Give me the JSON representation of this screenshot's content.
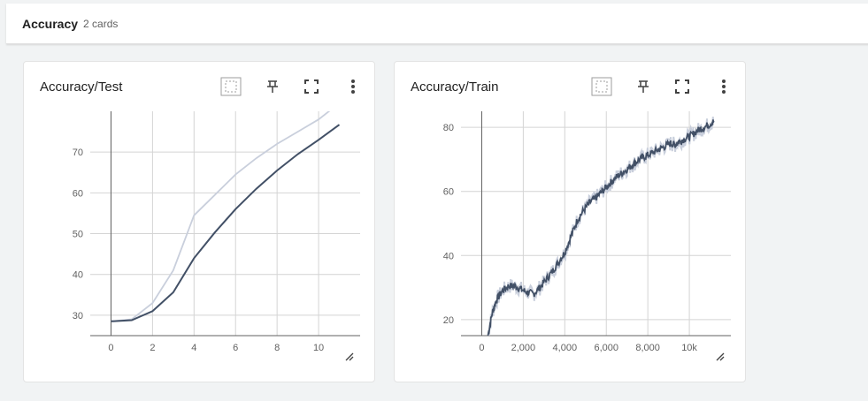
{
  "group": {
    "title": "Accuracy",
    "count": "2 cards"
  },
  "cards": [
    {
      "title": "Accuracy/Test",
      "icons": [
        "fit-domain-icon",
        "pin-icon",
        "fullscreen-icon",
        "more-vert-icon"
      ]
    },
    {
      "title": "Accuracy/Train",
      "icons": [
        "fit-domain-icon",
        "pin-icon",
        "fullscreen-icon",
        "more-vert-icon"
      ]
    }
  ],
  "chart_data": [
    {
      "type": "line",
      "xlim": [
        -1,
        12
      ],
      "ylim": [
        25,
        80
      ],
      "x_ticks": [
        0,
        2,
        4,
        6,
        8,
        10
      ],
      "x_tick_labels": [
        "0",
        "2",
        "4",
        "6",
        "8",
        "10"
      ],
      "y_ticks": [
        30,
        40,
        50,
        60,
        70
      ],
      "y_tick_labels": [
        "30",
        "40",
        "50",
        "60",
        "70"
      ],
      "grid": true,
      "colors": {
        "smoothed": "#425066",
        "raw": "#c9cfdc"
      },
      "series": [
        {
          "role": "raw",
          "x": [
            0,
            1,
            2,
            3,
            4,
            5,
            6,
            7,
            8,
            9,
            10,
            11
          ],
          "y": [
            28.5,
            29.0,
            33.0,
            41.0,
            54.5,
            59.5,
            64.5,
            68.5,
            72.0,
            75.0,
            78.0,
            82.0
          ]
        },
        {
          "role": "smoothed",
          "x": [
            0,
            1,
            2,
            3,
            4,
            5,
            6,
            7,
            8,
            9,
            10,
            11
          ],
          "y": [
            28.5,
            28.8,
            31.0,
            35.6,
            44.0,
            50.3,
            56.0,
            61.0,
            65.5,
            69.5,
            73.0,
            76.7
          ]
        }
      ]
    },
    {
      "type": "line",
      "xlim": [
        -1000,
        12000
      ],
      "ylim": [
        15,
        85
      ],
      "x_ticks": [
        0,
        2000,
        4000,
        6000,
        8000,
        10000
      ],
      "x_tick_labels": [
        "0",
        "2,000",
        "4,000",
        "6,000",
        "8,000",
        "10k"
      ],
      "y_ticks": [
        20,
        40,
        60,
        80
      ],
      "y_tick_labels": [
        "20",
        "40",
        "60",
        "80"
      ],
      "grid": true,
      "colors": {
        "smoothed": "#425066",
        "raw": "#c9cfdc"
      },
      "series": [
        {
          "role": "smoothed",
          "x": [
            300,
            500,
            700,
            1000,
            1300,
            1600,
            1900,
            2200,
            2500,
            2800,
            3100,
            3400,
            3700,
            4000,
            4300,
            4600,
            4900,
            5200,
            5500,
            5800,
            6100,
            6400,
            6700,
            7000,
            7300,
            7600,
            7900,
            8200,
            8500,
            8800,
            9100,
            9300,
            9500,
            9800,
            10100,
            10400,
            10700,
            11000,
            11200
          ],
          "y": [
            15,
            22,
            26,
            29,
            30.5,
            30.5,
            29.5,
            28.5,
            28,
            30,
            32.5,
            35,
            38,
            41,
            46,
            51,
            54,
            56.5,
            58,
            60,
            62,
            64,
            65.5,
            67,
            68.5,
            70,
            71,
            72,
            73,
            74,
            75,
            74.5,
            75.5,
            76.5,
            77.5,
            79,
            80,
            81,
            82
          ]
        }
      ]
    }
  ]
}
